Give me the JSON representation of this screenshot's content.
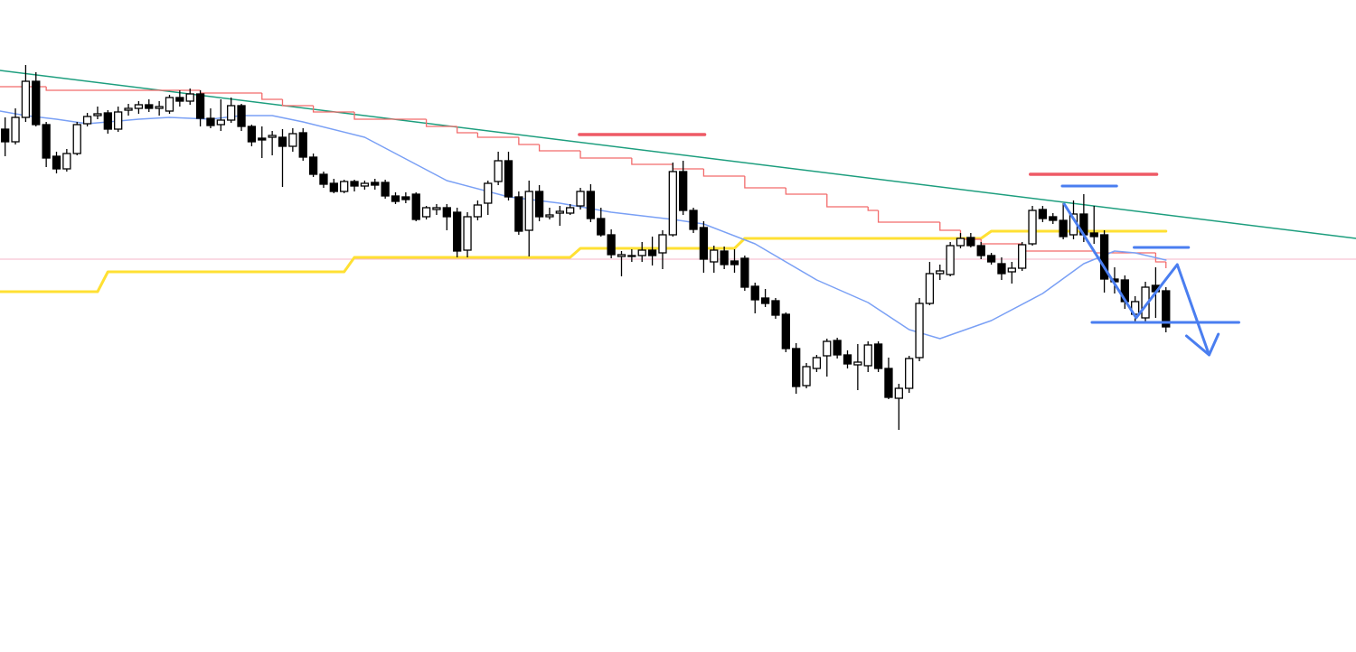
{
  "chart_data": {
    "type": "candlestick",
    "xlim": [
      -0.5,
      131.5
    ],
    "ylim": [
      0,
      722
    ],
    "up_color": "#ffffff",
    "down_color": "#000000",
    "outline_color": "#000000",
    "ohlc": [
      [
        579,
        592,
        549,
        565
      ],
      [
        565,
        602,
        562,
        592
      ],
      [
        592,
        650,
        587,
        632
      ],
      [
        632,
        642,
        582,
        584
      ],
      [
        584,
        587,
        537,
        547
      ],
      [
        549,
        554,
        530,
        535
      ],
      [
        535,
        557,
        532,
        552
      ],
      [
        552,
        587,
        550,
        584
      ],
      [
        585,
        597,
        582,
        593
      ],
      [
        594,
        604,
        590,
        596
      ],
      [
        597,
        600,
        574,
        579
      ],
      [
        579,
        604,
        576,
        598
      ],
      [
        600,
        607,
        594,
        602
      ],
      [
        602,
        610,
        596,
        606
      ],
      [
        606,
        612,
        598,
        602
      ],
      [
        602,
        610,
        594,
        604
      ],
      [
        599,
        617,
        596,
        614
      ],
      [
        614,
        622,
        604,
        610
      ],
      [
        610,
        624,
        606,
        618
      ],
      [
        618,
        622,
        582,
        591
      ],
      [
        591,
        602,
        580,
        583
      ],
      [
        584,
        612,
        577,
        589
      ],
      [
        589,
        614,
        586,
        605
      ],
      [
        605,
        607,
        577,
        582
      ],
      [
        582,
        584,
        560,
        565
      ],
      [
        569,
        582,
        547,
        567
      ],
      [
        570,
        577,
        550,
        572
      ],
      [
        570,
        579,
        515,
        560
      ],
      [
        560,
        580,
        554,
        574
      ],
      [
        575,
        580,
        544,
        548
      ],
      [
        548,
        552,
        526,
        529
      ],
      [
        529,
        532,
        514,
        518
      ],
      [
        519,
        524,
        508,
        510
      ],
      [
        510,
        523,
        508,
        521
      ],
      [
        521,
        523,
        510,
        516
      ],
      [
        516,
        522,
        512,
        519
      ],
      [
        520,
        524,
        512,
        517
      ],
      [
        520,
        523,
        502,
        505
      ],
      [
        505,
        509,
        496,
        499
      ],
      [
        504,
        509,
        497,
        501
      ],
      [
        507,
        509,
        477,
        479
      ],
      [
        482,
        494,
        479,
        492
      ],
      [
        490,
        496,
        484,
        492
      ],
      [
        492,
        496,
        467,
        482
      ],
      [
        487,
        492,
        437,
        444
      ],
      [
        445,
        487,
        437,
        482
      ],
      [
        482,
        500,
        478,
        495
      ],
      [
        497,
        522,
        484,
        519
      ],
      [
        521,
        554,
        517,
        544
      ],
      [
        544,
        554,
        500,
        504
      ],
      [
        504,
        510,
        462,
        466
      ],
      [
        467,
        522,
        438,
        510
      ],
      [
        510,
        517,
        477,
        482
      ],
      [
        482,
        492,
        479,
        484
      ],
      [
        486,
        494,
        472,
        488
      ],
      [
        486,
        496,
        484,
        492
      ],
      [
        494,
        514,
        490,
        510
      ],
      [
        510,
        518,
        476,
        480
      ],
      [
        480,
        492,
        460,
        462
      ],
      [
        462,
        468,
        436,
        440
      ],
      [
        438,
        444,
        416,
        440
      ],
      [
        438,
        446,
        432,
        439
      ],
      [
        439,
        454,
        432,
        445
      ],
      [
        445,
        460,
        428,
        439
      ],
      [
        442,
        467,
        424,
        462
      ],
      [
        462,
        542,
        460,
        532
      ],
      [
        532,
        544,
        484,
        489
      ],
      [
        489,
        492,
        464,
        468
      ],
      [
        470,
        477,
        420,
        435
      ],
      [
        432,
        450,
        420,
        445
      ],
      [
        444,
        449,
        424,
        429
      ],
      [
        433,
        446,
        420,
        429
      ],
      [
        436,
        439,
        400,
        404
      ],
      [
        405,
        409,
        375,
        390
      ],
      [
        392,
        402,
        382,
        386
      ],
      [
        389,
        392,
        369,
        373
      ],
      [
        374,
        376,
        332,
        336
      ],
      [
        336,
        342,
        286,
        294
      ],
      [
        295,
        320,
        292,
        316
      ],
      [
        314,
        329,
        310,
        326
      ],
      [
        328,
        347,
        305,
        344
      ],
      [
        345,
        348,
        325,
        329
      ],
      [
        329,
        334,
        314,
        319
      ],
      [
        318,
        341,
        290,
        321
      ],
      [
        317,
        344,
        310,
        340
      ],
      [
        341,
        344,
        310,
        314
      ],
      [
        314,
        326,
        280,
        282
      ],
      [
        281,
        297,
        246,
        292
      ],
      [
        292,
        328,
        287,
        325
      ],
      [
        326,
        392,
        322,
        386
      ],
      [
        386,
        432,
        384,
        419
      ],
      [
        419,
        429,
        412,
        422
      ],
      [
        418,
        454,
        416,
        450
      ],
      [
        450,
        464,
        447,
        458
      ],
      [
        459,
        464,
        448,
        450
      ],
      [
        450,
        454,
        435,
        439
      ],
      [
        439,
        442,
        429,
        432
      ],
      [
        430,
        437,
        412,
        419
      ],
      [
        421,
        432,
        408,
        425
      ],
      [
        425,
        454,
        422,
        451
      ],
      [
        452,
        494,
        450,
        489
      ],
      [
        490,
        494,
        476,
        480
      ],
      [
        482,
        486,
        474,
        478
      ],
      [
        478,
        497,
        457,
        460
      ],
      [
        462,
        500,
        457,
        485
      ],
      [
        485,
        507,
        454,
        462
      ],
      [
        464,
        494,
        452,
        460
      ],
      [
        462,
        467,
        398,
        413
      ],
      [
        413,
        426,
        397,
        410
      ],
      [
        412,
        417,
        380,
        388
      ],
      [
        374,
        394,
        366,
        388
      ],
      [
        370,
        410,
        366,
        404
      ],
      [
        406,
        426,
        370,
        399
      ],
      [
        400,
        404,
        354,
        360
      ]
    ],
    "lines": [
      {
        "color": "#f4b6c8",
        "width": 1,
        "x": [
          -0.5,
          131.5
        ],
        "values": [
          435,
          435
        ]
      },
      {
        "color": "#1d9e7e",
        "width": 1.5,
        "x": [
          -0.5,
          131.5
        ],
        "values": [
          644,
          458
        ]
      },
      {
        "color": "#ffe033",
        "width": 3,
        "x": [
          -0.5,
          9,
          10,
          33,
          34,
          55,
          56,
          71,
          72,
          95,
          96,
          113
        ],
        "values": [
          399,
          399,
          421,
          421,
          437,
          437,
          447,
          447,
          458,
          458,
          466,
          466
        ]
      },
      {
        "color": "#f26b6b",
        "width": 1.3,
        "step": true,
        "x": [
          -0.5,
          4,
          19,
          25,
          27,
          30,
          34,
          41,
          44,
          46,
          50,
          52,
          56,
          61,
          65,
          68,
          72,
          76,
          80,
          84,
          85,
          91,
          93,
          95,
          99,
          106,
          112,
          113
        ],
        "values": [
          626,
          622,
          619,
          612,
          605,
          598,
          590,
          582,
          575,
          570,
          562,
          555,
          547,
          540,
          535,
          527,
          514,
          507,
          493,
          489,
          476,
          467,
          457,
          452,
          444,
          442,
          432,
          425
        ]
      },
      {
        "color": "#7aa0f5",
        "width": 1.5,
        "x": [
          -0.5,
          2,
          5,
          8,
          13,
          16,
          20,
          23,
          26,
          29,
          35,
          38,
          43,
          49,
          54,
          59,
          65,
          68,
          73,
          79,
          84,
          88,
          91,
          96,
          101,
          105,
          108,
          110,
          113
        ],
        "values": [
          599,
          594,
          590,
          585,
          590,
          592,
          590,
          594,
          594,
          587,
          570,
          552,
          522,
          504,
          497,
          487,
          479,
          474,
          452,
          412,
          387,
          357,
          347,
          367,
          397,
          430,
          444,
          442,
          434
        ]
      },
      {
        "color": "#ee5a66",
        "width": 3.5,
        "x": [
          55.9,
          68.1
        ],
        "values": [
          573,
          573
        ]
      },
      {
        "color": "#ee5a66",
        "width": 3.5,
        "x": [
          99.8,
          112.1
        ],
        "values": [
          529,
          529
        ]
      },
      {
        "color": "#4a7ef0",
        "width": 3,
        "x": [
          102.9,
          108.2
        ],
        "values": [
          516,
          516
        ]
      },
      {
        "color": "#4a7ef0",
        "width": 3,
        "x": [
          109.9,
          115.2
        ],
        "values": [
          448,
          448
        ]
      },
      {
        "color": "#4a7ef0",
        "width": 3,
        "x": [
          105.8,
          120.1
        ],
        "values": [
          365,
          365
        ]
      },
      {
        "color": "#4a7ef0",
        "width": 3,
        "x": [
          103.1,
          110.1,
          114.1,
          117.2
        ],
        "values": [
          496,
          370,
          429,
          329
        ]
      },
      {
        "color": "#4a7ef0",
        "width": 3,
        "x": [
          115,
          117.2,
          118.1
        ],
        "values": [
          350,
          329,
          352
        ]
      }
    ]
  }
}
